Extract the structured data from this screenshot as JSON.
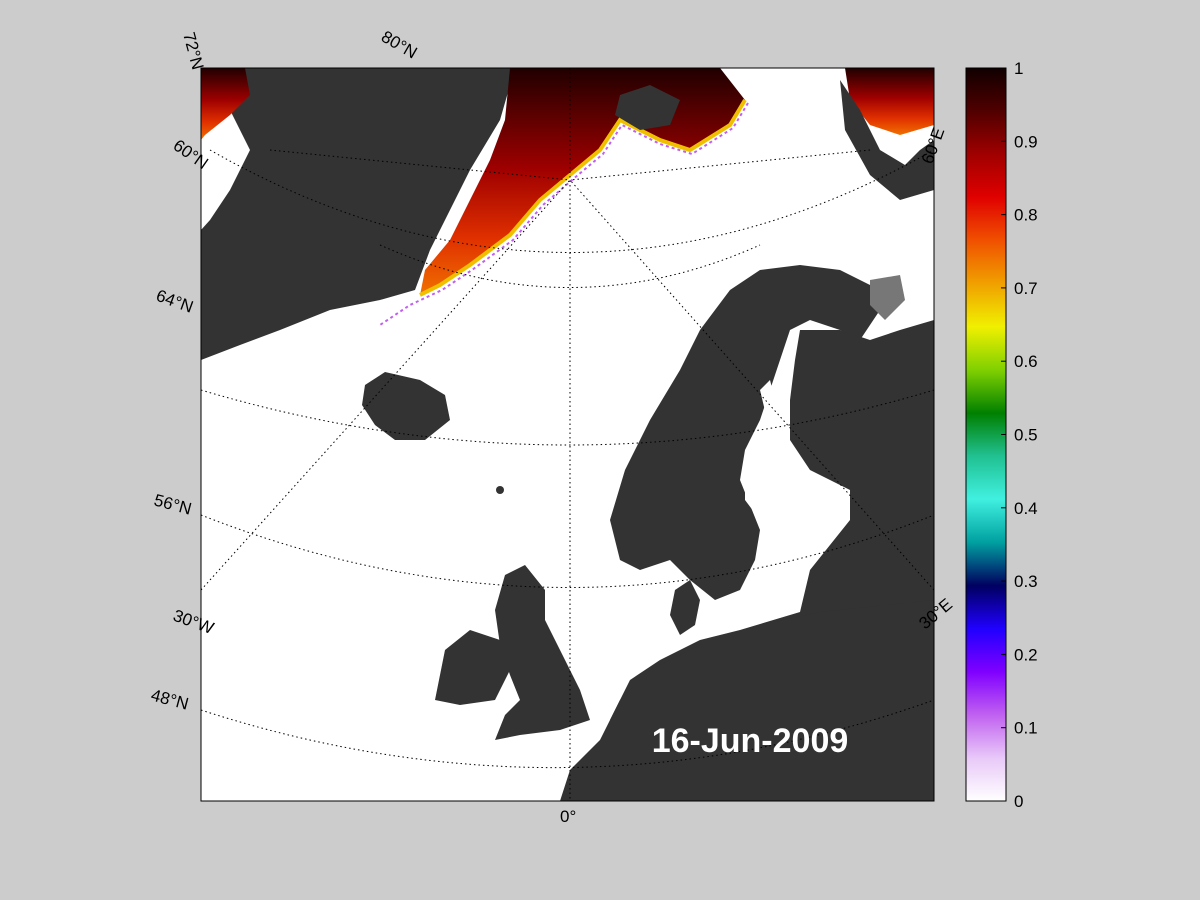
{
  "date": "16-Jun-2009",
  "latitude_labels": [
    "72°N",
    "80°N",
    "60°N",
    "64°N",
    "56°N",
    "48°N"
  ],
  "longitude_labels": [
    "60°E",
    "30°E",
    "30°W",
    "0°"
  ],
  "colorbar": {
    "ticks": [
      "1",
      "0.9",
      "0.8",
      "0.7",
      "0.6",
      "0.5",
      "0.4",
      "0.3",
      "0.2",
      "0.1",
      "0"
    ],
    "range": [
      0,
      1
    ],
    "colormap": [
      "#ffffff",
      "#e8c8f8",
      "#c060f0",
      "#8000ff",
      "#2000ff",
      "#000060",
      "#00a0a0",
      "#40f0e0",
      "#20c090",
      "#008000",
      "#80d000",
      "#f0f000",
      "#f0a000",
      "#f05000",
      "#e00000",
      "#a00000",
      "#500000",
      "#100000"
    ]
  },
  "colors": {
    "background": "#cccccc",
    "ocean": "#ffffff",
    "land": "#333333",
    "land_mask": "#777777",
    "ice_high": "#a01000",
    "ice_edge": "#f0a000",
    "ice_low": "#a040f0",
    "label_text": "#ffffff"
  }
}
